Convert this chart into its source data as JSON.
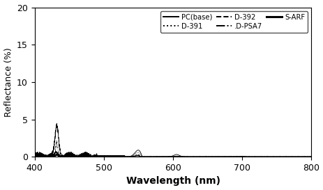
{
  "title": "",
  "xlabel": "Wavelength (nm)",
  "ylabel": "Reflectance (%)",
  "xlim": [
    400,
    800
  ],
  "ylim": [
    0,
    20
  ],
  "xticks": [
    400,
    500,
    600,
    700,
    800
  ],
  "yticks": [
    0,
    5,
    10,
    15,
    20
  ],
  "legend_row1": [
    {
      "label": "PC(base)",
      "linestyle": "solid",
      "linewidth": 1.4
    },
    {
      "label": "D-391",
      "linestyle": "dotted",
      "linewidth": 1.4
    },
    {
      "label": "D-392",
      "linestyle": "dashed",
      "linewidth": 1.4
    }
  ],
  "legend_row2": [
    {
      "label": ".D-PSA7",
      "linestyle": "dashdot",
      "linewidth": 1.4
    },
    {
      "label": "S-ARF",
      "linestyle": "solid",
      "linewidth": 2.2
    }
  ],
  "background_color": "#ffffff",
  "line_color": "#000000",
  "font_size": 9,
  "label_font_size": 10
}
